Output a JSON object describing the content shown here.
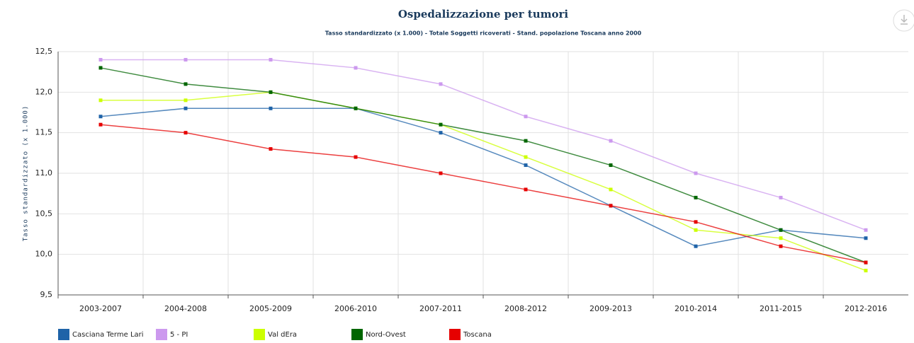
{
  "chart_data": {
    "type": "line",
    "title": "Ospedalizzazione per tumori",
    "subtitle": "Tasso standardizzato (x 1.000) - Totale Soggetti ricoverati - Stand. popolazione Toscana anno 2000",
    "y_label": "Tasso standardizzato (x 1.000)",
    "categories": [
      "2003-2007",
      "2004-2008",
      "2005-2009",
      "2006-2010",
      "2007-2011",
      "2008-2012",
      "2009-2013",
      "2010-2014",
      "2011-2015",
      "2012-2016"
    ],
    "series": [
      {
        "name": "Casciana Terme Lari",
        "color": "#1f63a8",
        "values": [
          11.7,
          11.8,
          11.8,
          11.8,
          11.5,
          11.1,
          10.6,
          10.1,
          10.3,
          10.2
        ]
      },
      {
        "name": "5 - PI",
        "color": "#cc99ee",
        "values": [
          12.4,
          12.4,
          12.4,
          12.3,
          12.1,
          11.7,
          11.4,
          11.0,
          10.7,
          10.3
        ]
      },
      {
        "name": "Val dEra",
        "color": "#ccff00",
        "values": [
          11.9,
          11.9,
          12.0,
          11.8,
          11.6,
          11.2,
          10.8,
          10.3,
          10.2,
          9.8
        ]
      },
      {
        "name": "Nord-Ovest",
        "color": "#006600",
        "values": [
          12.3,
          12.1,
          12.0,
          11.8,
          11.6,
          11.4,
          11.1,
          10.7,
          10.3,
          9.9
        ]
      },
      {
        "name": "Toscana",
        "color": "#e60000",
        "values": [
          11.6,
          11.5,
          11.3,
          11.2,
          11.0,
          10.8,
          10.6,
          10.4,
          10.1,
          9.9
        ]
      }
    ],
    "ylim": [
      9.5,
      12.5
    ],
    "yticks": [
      {
        "value": 9.5,
        "label": "9,5"
      },
      {
        "value": 10,
        "label": "10,0"
      },
      {
        "value": 10.5,
        "label": "10,5"
      },
      {
        "value": 11,
        "label": "11,0"
      },
      {
        "value": 11.5,
        "label": "11,5"
      },
      {
        "value": 12,
        "label": "12,0"
      },
      {
        "value": 12.5,
        "label": "12,5"
      }
    ],
    "grid": true
  }
}
